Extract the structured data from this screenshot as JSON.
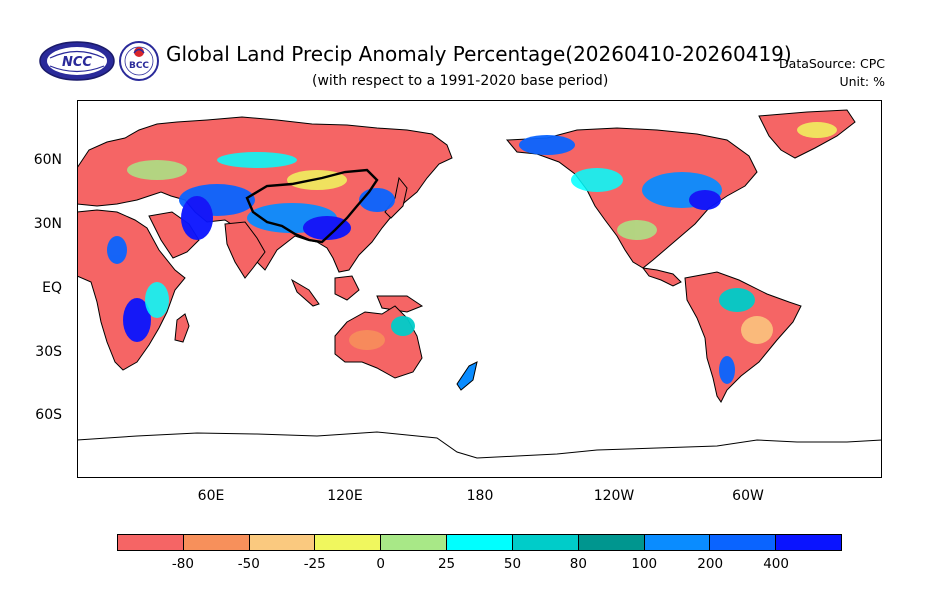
{
  "header": {
    "title": "Global Land Precip Anomaly Percentage(20260410-20260419)",
    "subtitle": "(with respect to a 1991-2020 base period)",
    "datasource": "DataSource:  CPC",
    "unit": "Unit:  %"
  },
  "logos": {
    "ncc_text": "NCC",
    "bcc_text": "BCC"
  },
  "map": {
    "lat_labels": [
      "60N",
      "30N",
      "EQ",
      "30S",
      "60S"
    ],
    "lon_labels": [
      "60E",
      "120E",
      "180",
      "120W",
      "60W"
    ]
  },
  "colorbar": {
    "colors": [
      "#f56565",
      "#f7905b",
      "#fac97f",
      "#f0f75e",
      "#a8e887",
      "#00ffff",
      "#00ccc9",
      "#00968f",
      "#0a8cff",
      "#0a64ff",
      "#0a14ff"
    ],
    "labels": [
      "-80",
      "-50",
      "-25",
      "0",
      "25",
      "50",
      "80",
      "100",
      "200",
      "400"
    ]
  },
  "palette": {
    "dry": "#f56565",
    "wet": "#0a14ff",
    "ocean": "#ffffff",
    "frame": "#000000"
  }
}
